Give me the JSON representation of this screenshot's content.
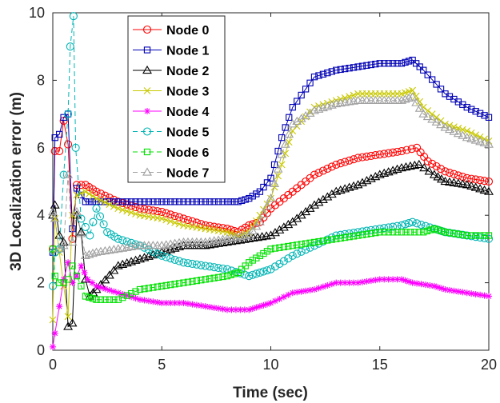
{
  "chart_data": {
    "type": "line",
    "title": "",
    "xlabel": "Time (sec)",
    "ylabel": "3D Localization error (m)",
    "xlim": [
      0,
      20
    ],
    "ylim": [
      0,
      10
    ],
    "xticks": [
      "0",
      "5",
      "10",
      "15",
      "20"
    ],
    "yticks": [
      "0",
      "2",
      "4",
      "6",
      "8",
      "10"
    ],
    "grid": false,
    "legend_position": "top-left",
    "series": [
      {
        "name": "Node 0",
        "color": "#ff0000",
        "marker": "circle",
        "dashed": false,
        "points": [
          [
            0,
            3.0
          ],
          [
            0.1,
            5.9
          ],
          [
            0.3,
            5.9
          ],
          [
            0.5,
            6.8
          ],
          [
            0.7,
            6.1
          ],
          [
            0.9,
            3.3
          ],
          [
            1.1,
            4.9
          ],
          [
            1.5,
            4.9
          ],
          [
            2,
            4.7
          ],
          [
            3,
            4.4
          ],
          [
            4,
            4.2
          ],
          [
            5,
            4.1
          ],
          [
            6,
            3.9
          ],
          [
            7,
            3.7
          ],
          [
            8,
            3.6
          ],
          [
            8.5,
            3.5
          ],
          [
            9,
            3.7
          ],
          [
            9.5,
            3.8
          ],
          [
            10,
            4.2
          ],
          [
            11,
            4.7
          ],
          [
            12,
            5.2
          ],
          [
            13,
            5.5
          ],
          [
            14,
            5.7
          ],
          [
            15,
            5.8
          ],
          [
            16,
            5.9
          ],
          [
            16.7,
            6.0
          ],
          [
            17.2,
            5.6
          ],
          [
            18,
            5.3
          ],
          [
            19,
            5.1
          ],
          [
            20,
            5.0
          ]
        ]
      },
      {
        "name": "Node 1",
        "color": "#0000b4",
        "marker": "square",
        "dashed": false,
        "points": [
          [
            0,
            2.9
          ],
          [
            0.1,
            6.3
          ],
          [
            0.3,
            6.4
          ],
          [
            0.5,
            6.9
          ],
          [
            0.7,
            7.0
          ],
          [
            0.9,
            3.6
          ],
          [
            1.1,
            4.8
          ],
          [
            1.5,
            4.4
          ],
          [
            2,
            4.4
          ],
          [
            3,
            4.4
          ],
          [
            4,
            4.4
          ],
          [
            5,
            4.4
          ],
          [
            6,
            4.4
          ],
          [
            7,
            4.4
          ],
          [
            8,
            4.4
          ],
          [
            8.5,
            4.4
          ],
          [
            9,
            4.5
          ],
          [
            9.5,
            4.7
          ],
          [
            10,
            5.1
          ],
          [
            10.5,
            6.3
          ],
          [
            11,
            7.2
          ],
          [
            12,
            8.1
          ],
          [
            13,
            8.3
          ],
          [
            14,
            8.4
          ],
          [
            15,
            8.5
          ],
          [
            16,
            8.5
          ],
          [
            16.5,
            8.6
          ],
          [
            17,
            8.3
          ],
          [
            18,
            7.6
          ],
          [
            19,
            7.2
          ],
          [
            20,
            6.9
          ]
        ]
      },
      {
        "name": "Node 2",
        "color": "#000000",
        "marker": "triangle",
        "dashed": false,
        "points": [
          [
            0,
            4.0
          ],
          [
            0.1,
            4.3
          ],
          [
            0.3,
            3.4
          ],
          [
            0.5,
            3.2
          ],
          [
            0.7,
            0.7
          ],
          [
            0.9,
            0.8
          ],
          [
            1.1,
            4.0
          ],
          [
            1.3,
            3.5
          ],
          [
            1.5,
            2.1
          ],
          [
            1.7,
            1.6
          ],
          [
            2,
            1.8
          ],
          [
            3,
            2.5
          ],
          [
            4,
            2.7
          ],
          [
            5,
            2.9
          ],
          [
            6,
            3.1
          ],
          [
            7,
            3.1
          ],
          [
            8,
            3.2
          ],
          [
            9,
            3.3
          ],
          [
            10,
            3.4
          ],
          [
            11,
            3.8
          ],
          [
            12,
            4.3
          ],
          [
            13,
            4.7
          ],
          [
            14,
            4.9
          ],
          [
            15,
            5.2
          ],
          [
            16,
            5.4
          ],
          [
            16.8,
            5.5
          ],
          [
            17.5,
            5.2
          ],
          [
            18,
            5.0
          ],
          [
            19,
            4.9
          ],
          [
            20,
            4.7
          ]
        ]
      },
      {
        "name": "Node 3",
        "color": "#c8c800",
        "marker": "x",
        "dashed": false,
        "points": [
          [
            0,
            0.9
          ],
          [
            0.1,
            3.9
          ],
          [
            0.3,
            2.9
          ],
          [
            0.5,
            1.9
          ],
          [
            0.7,
            1.0
          ],
          [
            0.9,
            4.0
          ],
          [
            1.1,
            4.6
          ],
          [
            1.5,
            4.7
          ],
          [
            2,
            4.5
          ],
          [
            3,
            4.2
          ],
          [
            4,
            4.0
          ],
          [
            5,
            3.9
          ],
          [
            6,
            3.7
          ],
          [
            7,
            3.6
          ],
          [
            8,
            3.5
          ],
          [
            8.5,
            3.4
          ],
          [
            9,
            3.5
          ],
          [
            9.5,
            4.0
          ],
          [
            10,
            4.5
          ],
          [
            10.5,
            5.5
          ],
          [
            11,
            6.5
          ],
          [
            12,
            7.2
          ],
          [
            13,
            7.4
          ],
          [
            14,
            7.6
          ],
          [
            15,
            7.6
          ],
          [
            16,
            7.6
          ],
          [
            16.5,
            7.7
          ],
          [
            17,
            7.2
          ],
          [
            18,
            6.7
          ],
          [
            19,
            6.5
          ],
          [
            20,
            6.2
          ]
        ]
      },
      {
        "name": "Node 4",
        "color": "#ff00ff",
        "marker": "star",
        "dashed": false,
        "points": [
          [
            0,
            0.1
          ],
          [
            0.1,
            0.5
          ],
          [
            0.3,
            1.3
          ],
          [
            0.5,
            2.1
          ],
          [
            0.7,
            2.6
          ],
          [
            0.9,
            2.0
          ],
          [
            1.1,
            2.2
          ],
          [
            1.3,
            2.5
          ],
          [
            1.6,
            2.1
          ],
          [
            2,
            1.9
          ],
          [
            3,
            1.7
          ],
          [
            4,
            1.5
          ],
          [
            5,
            1.4
          ],
          [
            6,
            1.4
          ],
          [
            7,
            1.3
          ],
          [
            8,
            1.2
          ],
          [
            9,
            1.2
          ],
          [
            9.5,
            1.3
          ],
          [
            10,
            1.4
          ],
          [
            11,
            1.7
          ],
          [
            12,
            1.8
          ],
          [
            13,
            2.0
          ],
          [
            14,
            2.0
          ],
          [
            15,
            2.1
          ],
          [
            16,
            2.1
          ],
          [
            16.5,
            2.0
          ],
          [
            17.5,
            1.9
          ],
          [
            18,
            1.8
          ],
          [
            19,
            1.7
          ],
          [
            20,
            1.6
          ]
        ]
      },
      {
        "name": "Node 5",
        "color": "#00b4b4",
        "marker": "circle",
        "dashed": true,
        "points": [
          [
            0,
            1.9
          ],
          [
            0.1,
            2.9
          ],
          [
            0.3,
            3.0
          ],
          [
            0.5,
            5.2
          ],
          [
            0.7,
            7.0
          ],
          [
            0.8,
            9.0
          ],
          [
            0.95,
            9.9
          ],
          [
            1.05,
            6.0
          ],
          [
            1.3,
            3.9
          ],
          [
            1.7,
            3.4
          ],
          [
            2,
            4.2
          ],
          [
            2.5,
            3.5
          ],
          [
            3,
            3.3
          ],
          [
            4,
            3.1
          ],
          [
            5,
            2.8
          ],
          [
            6,
            2.6
          ],
          [
            7,
            2.5
          ],
          [
            8,
            2.4
          ],
          [
            9,
            2.2
          ],
          [
            9.5,
            2.3
          ],
          [
            10,
            2.4
          ],
          [
            11,
            2.8
          ],
          [
            12,
            3.1
          ],
          [
            13,
            3.4
          ],
          [
            14,
            3.5
          ],
          [
            15,
            3.6
          ],
          [
            16,
            3.7
          ],
          [
            16.5,
            3.8
          ],
          [
            17.5,
            3.6
          ],
          [
            18,
            3.5
          ],
          [
            19,
            3.4
          ],
          [
            20,
            3.3
          ]
        ]
      },
      {
        "name": "Node 6",
        "color": "#00e000",
        "marker": "square",
        "dashed": true,
        "points": [
          [
            0,
            3.0
          ],
          [
            0.1,
            2.2
          ],
          [
            0.3,
            2.0
          ],
          [
            0.5,
            2.0
          ],
          [
            0.7,
            2.1
          ],
          [
            0.9,
            2.5
          ],
          [
            1.1,
            2.2
          ],
          [
            1.5,
            1.6
          ],
          [
            2,
            1.5
          ],
          [
            3,
            1.5
          ],
          [
            4,
            1.8
          ],
          [
            5,
            1.9
          ],
          [
            6,
            2.0
          ],
          [
            7,
            2.1
          ],
          [
            8,
            2.2
          ],
          [
            8.5,
            2.3
          ],
          [
            9,
            2.6
          ],
          [
            9.5,
            2.8
          ],
          [
            10,
            3.0
          ],
          [
            11,
            3.1
          ],
          [
            12,
            3.2
          ],
          [
            13,
            3.3
          ],
          [
            14,
            3.4
          ],
          [
            15,
            3.5
          ],
          [
            16,
            3.5
          ],
          [
            17,
            3.5
          ],
          [
            17.5,
            3.6
          ],
          [
            18,
            3.5
          ],
          [
            19,
            3.4
          ],
          [
            20,
            3.4
          ]
        ]
      },
      {
        "name": "Node 7",
        "color": "#a0a0a0",
        "marker": "triangle",
        "dashed": true,
        "points": [
          [
            0,
            4.1
          ],
          [
            0.1,
            3.9
          ],
          [
            0.3,
            3.0
          ],
          [
            0.5,
            3.1
          ],
          [
            0.7,
            5.2
          ],
          [
            0.9,
            3.2
          ],
          [
            1.1,
            4.1
          ],
          [
            1.5,
            2.8
          ],
          [
            2,
            2.9
          ],
          [
            3,
            3.0
          ],
          [
            4,
            3.1
          ],
          [
            5,
            3.1
          ],
          [
            6,
            3.2
          ],
          [
            7,
            3.2
          ],
          [
            8,
            3.3
          ],
          [
            9,
            3.4
          ],
          [
            9.5,
            3.8
          ],
          [
            10,
            4.5
          ],
          [
            10.5,
            5.8
          ],
          [
            11,
            6.7
          ],
          [
            12,
            7.1
          ],
          [
            13,
            7.3
          ],
          [
            14,
            7.4
          ],
          [
            15,
            7.4
          ],
          [
            16,
            7.4
          ],
          [
            16.5,
            7.5
          ],
          [
            17,
            7.0
          ],
          [
            18,
            6.6
          ],
          [
            19,
            6.3
          ],
          [
            20,
            6.1
          ]
        ]
      }
    ]
  }
}
